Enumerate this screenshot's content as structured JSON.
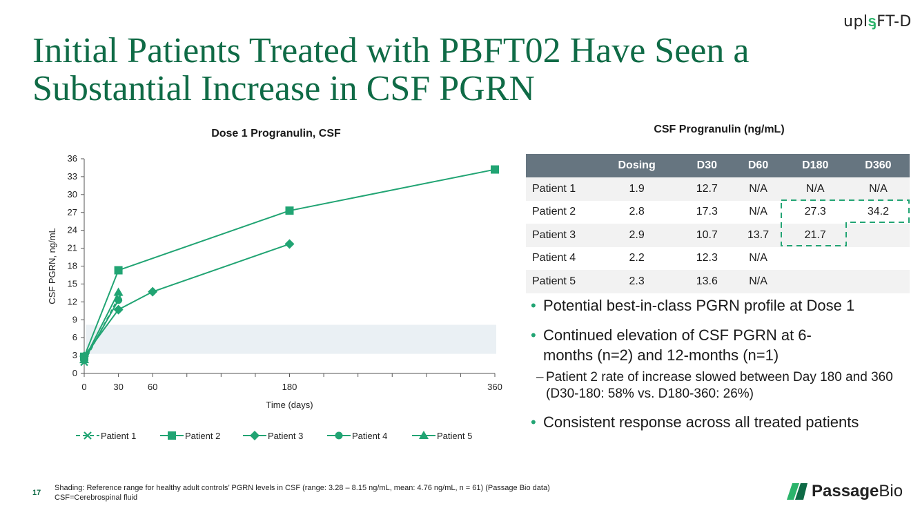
{
  "logo_text": {
    "pre": "upl",
    "mark": "ᶊ",
    "post": "FT-D"
  },
  "slide_title": "Initial Patients Treated with PBFT02 Have Seen a Substantial Increase in CSF PGRN",
  "chart_data": {
    "type": "line",
    "title": "Dose 1 Progranulin, CSF",
    "xlabel": "Time (days)",
    "ylabel": "CSF PGRN, ng/mL",
    "xlim": [
      0,
      360
    ],
    "ylim": [
      0,
      36
    ],
    "xticks": [
      0,
      30,
      60,
      180,
      360
    ],
    "yticks": [
      0,
      3,
      6,
      9,
      12,
      15,
      18,
      21,
      24,
      27,
      30,
      33,
      36
    ],
    "shaded_band": [
      3.28,
      8.15
    ],
    "legend_position": "bottom",
    "series": [
      {
        "name": "Patient 1",
        "marker": "x",
        "dashed": true,
        "x": [
          0,
          30
        ],
        "y": [
          1.9,
          12.7
        ]
      },
      {
        "name": "Patient 2",
        "marker": "square",
        "dashed": false,
        "x": [
          0,
          30,
          180,
          360
        ],
        "y": [
          2.8,
          17.3,
          27.3,
          34.2
        ]
      },
      {
        "name": "Patient 3",
        "marker": "diamond",
        "dashed": false,
        "x": [
          0,
          30,
          60,
          180
        ],
        "y": [
          2.9,
          10.7,
          13.7,
          21.7
        ]
      },
      {
        "name": "Patient 4",
        "marker": "circle",
        "dashed": false,
        "x": [
          0,
          30
        ],
        "y": [
          2.2,
          12.3
        ]
      },
      {
        "name": "Patient 5",
        "marker": "triangle",
        "dashed": false,
        "x": [
          0,
          30
        ],
        "y": [
          2.3,
          13.6
        ]
      }
    ]
  },
  "table": {
    "title": "CSF Progranulin (ng/mL)",
    "headers": [
      "",
      "Dosing",
      "D30",
      "D60",
      "D180",
      "D360"
    ],
    "rows": [
      [
        "Patient 1",
        "1.9",
        "12.7",
        "N/A",
        "N/A",
        "N/A"
      ],
      [
        "Patient 2",
        "2.8",
        "17.3",
        "N/A",
        "27.3",
        "34.2"
      ],
      [
        "Patient 3",
        "2.9",
        "10.7",
        "13.7",
        "21.7",
        ""
      ],
      [
        "Patient 4",
        "2.2",
        "12.3",
        "N/A",
        "",
        ""
      ],
      [
        "Patient 5",
        "2.3",
        "13.6",
        "N/A",
        "",
        ""
      ]
    ]
  },
  "bullets": {
    "b1": "Potential best-in-class PGRN profile at Dose 1",
    "b2": "Continued elevation of CSF PGRN at 6-months (n=2) and 12-months (n=1)",
    "sub1": "Patient 2 rate of increase slowed between Day 180 and 360 (D30-180: 58% vs. D180-360: 26%)",
    "b3": "Consistent response across all treated patients"
  },
  "page_number": "17",
  "footnotes": {
    "line1": "Shading: Reference range for healthy adult controls’ PGRN levels in CSF (range: 3.28 – 8.15 ng/mL, mean: 4.76 ng/mL, n = 61) (Passage Bio data)",
    "line2": "CSF=Cerebrospinal fluid"
  },
  "company_logo": {
    "bold": "Passage",
    "regular": "Bio"
  },
  "colors": {
    "title_green": "#0f6b46",
    "series_green": "#21a473",
    "band": "#eaf0f4",
    "table_header": "#667580"
  }
}
